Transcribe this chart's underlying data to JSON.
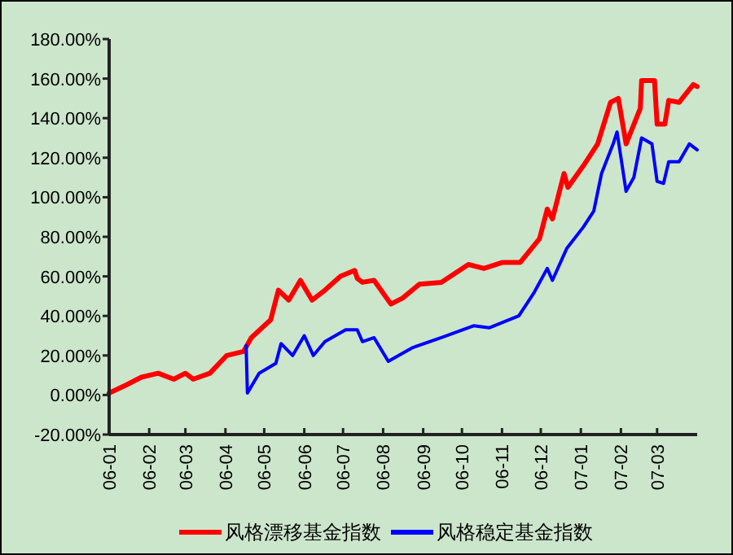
{
  "chart_data": {
    "type": "line",
    "legend": "bottom",
    "grid": false,
    "marker": "none",
    "line_style": "solid",
    "xlim": [
      "2006-01-01",
      "2007-04-01"
    ],
    "xticks": [
      {
        "value": "2006-01-01",
        "label": "06-01"
      },
      {
        "value": "2006-02-01",
        "label": "06-02"
      },
      {
        "value": "2006-03-01",
        "label": "06-03"
      },
      {
        "value": "2006-04-01",
        "label": "06-04"
      },
      {
        "value": "2006-05-01",
        "label": "06-05"
      },
      {
        "value": "2006-06-01",
        "label": "06-06"
      },
      {
        "value": "2006-07-01",
        "label": "06-07"
      },
      {
        "value": "2006-08-01",
        "label": "06-08"
      },
      {
        "value": "2006-09-01",
        "label": "06-09"
      },
      {
        "value": "2006-10-01",
        "label": "06-10"
      },
      {
        "value": "2006-11-01",
        "label": "06-11"
      },
      {
        "value": "2006-12-01",
        "label": "06-12"
      },
      {
        "value": "2007-01-01",
        "label": "07-01"
      },
      {
        "value": "2007-02-01",
        "label": "07-02"
      },
      {
        "value": "2007-03-01",
        "label": "07-03"
      }
    ],
    "ylim": [
      -20,
      180
    ],
    "yticks": [
      {
        "value": -20,
        "label": "-20.00%"
      },
      {
        "value": 0,
        "label": "0.00%"
      },
      {
        "value": 20,
        "label": "20.00%"
      },
      {
        "value": 40,
        "label": "40.00%"
      },
      {
        "value": 60,
        "label": "60.00%"
      },
      {
        "value": 80,
        "label": "80.00%"
      },
      {
        "value": 100,
        "label": "100.00%"
      },
      {
        "value": 120,
        "label": "120.00%"
      },
      {
        "value": 140,
        "label": "140.00%"
      },
      {
        "value": 160,
        "label": "160.00%"
      },
      {
        "value": 180,
        "label": "180.00%"
      }
    ],
    "series": [
      {
        "name": "风格漂移基金指数",
        "color": "#ff0000",
        "x": [
          "2006-01-01",
          "2006-01-14",
          "2006-01-26",
          "2006-02-08",
          "2006-02-20",
          "2006-03-01",
          "2006-03-07",
          "2006-03-20",
          "2006-04-02",
          "2006-04-15",
          "2006-04-21",
          "2006-05-06",
          "2006-05-12",
          "2006-05-20",
          "2006-05-29",
          "2006-06-07",
          "2006-06-17",
          "2006-06-29",
          "2006-07-10",
          "2006-07-12",
          "2006-07-16",
          "2006-07-25",
          "2006-08-07",
          "2006-08-16",
          "2006-08-29",
          "2006-09-15",
          "2006-10-06",
          "2006-10-18",
          "2006-11-01",
          "2006-11-15",
          "2006-11-30",
          "2006-12-06",
          "2006-12-10",
          "2006-12-19",
          "2006-12-22",
          "2007-01-03",
          "2007-01-14",
          "2007-01-24",
          "2007-01-30",
          "2007-02-05",
          "2007-02-16",
          "2007-02-17",
          "2007-02-27",
          "2007-03-01",
          "2007-03-07",
          "2007-03-10",
          "2007-03-18",
          "2007-03-29",
          "2007-04-01"
        ],
        "values": [
          1,
          5,
          9,
          11,
          8,
          11,
          8,
          11,
          20,
          22,
          29,
          38,
          53,
          48,
          58,
          48,
          53,
          60,
          63,
          59,
          57,
          58,
          46,
          49,
          56,
          57,
          66,
          64,
          67,
          67,
          79,
          94,
          89,
          112,
          105,
          116,
          127,
          148,
          150,
          127,
          145,
          159,
          159,
          137,
          137,
          149,
          148,
          157,
          156
        ]
      },
      {
        "name": "风格稳定基金指数",
        "color": "#0000ff",
        "x": [
          "2006-04-17",
          "2006-04-18",
          "2006-04-27",
          "2006-05-10",
          "2006-05-14",
          "2006-05-23",
          "2006-06-01",
          "2006-06-08",
          "2006-06-17",
          "2006-07-03",
          "2006-07-12",
          "2006-07-16",
          "2006-07-25",
          "2006-08-05",
          "2006-08-24",
          "2006-09-15",
          "2006-10-10",
          "2006-10-22",
          "2006-11-14",
          "2006-11-26",
          "2006-12-06",
          "2006-12-10",
          "2006-12-21",
          "2007-01-03",
          "2007-01-11",
          "2007-01-17",
          "2007-01-26",
          "2007-01-29",
          "2007-02-05",
          "2007-02-11",
          "2007-02-17",
          "2007-02-25",
          "2007-03-01",
          "2007-03-06",
          "2007-03-10",
          "2007-03-18",
          "2007-03-26",
          "2007-04-01"
        ],
        "values": [
          25,
          1,
          11,
          16,
          26,
          20,
          30,
          20,
          27,
          33,
          33,
          27,
          29,
          17,
          24,
          29,
          35,
          34,
          40,
          52,
          64,
          58,
          74,
          85,
          93,
          112,
          127,
          133,
          103,
          110,
          130,
          127,
          108,
          107,
          118,
          118,
          127,
          124
        ]
      }
    ]
  }
}
